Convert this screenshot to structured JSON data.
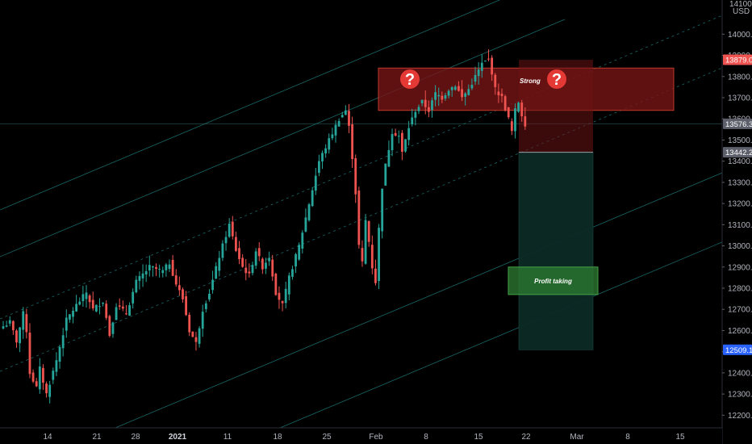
{
  "currency": "USD",
  "top_price_label": "14100.0",
  "colors": {
    "up": "#26a69a",
    "down": "#ef5350",
    "channel": "#1f7a7a",
    "red_zone": "#7a1416",
    "profit_zone": "#0c2a25",
    "profit_box": "#2e7d32",
    "last_price_tag": "#ef5350",
    "neutral_tag": "#5d606b",
    "blue_tag": "#2962ff"
  },
  "annotations": {
    "resistance_zone": {
      "low": 13640,
      "high": 13840,
      "label": "Strong"
    },
    "question_marks": [
      "?",
      "?"
    ],
    "short_position": {
      "entry": 13442.2,
      "stop": 13879.0,
      "target": 12509.1
    },
    "profit_box": {
      "low": 12770,
      "high": 12900,
      "label": "Profit taking"
    }
  },
  "price_tags": [
    {
      "price": 13879.0,
      "text": "13879.0",
      "color": "#ef5350"
    },
    {
      "price": 13576.3,
      "text": "13576.3",
      "color": "#5d606b"
    },
    {
      "price": 13442.2,
      "text": "13442.2",
      "color": "#5d606b"
    },
    {
      "price": 12509.1,
      "text": "12509.1",
      "color": "#2962ff"
    }
  ],
  "chart_data": {
    "type": "candlestick",
    "title": "",
    "xlabel": "",
    "ylabel": "",
    "ylim": [
      12125,
      14150
    ],
    "y_ticks": [
      12200,
      12300,
      12400,
      12500,
      12600,
      12700,
      12800,
      12900,
      13000,
      13100,
      13200,
      13300,
      13400,
      13500,
      13600,
      13700,
      13800,
      13900,
      14000
    ],
    "y_tick_labels": [
      "12200.0",
      "12300.0",
      "12400.0",
      "12500.0",
      "12600.0",
      "12700.0",
      "12800.0",
      "12900.0",
      "13000.0",
      "13100.0",
      "13200.0",
      "13300.0",
      "13400.0",
      "13500.0",
      "13600.0",
      "13700.0",
      "13800.0",
      "13900.0",
      "14000.0"
    ],
    "x_ticks": [
      "14",
      "21",
      "28",
      "2021",
      "11",
      "18",
      "25",
      "Feb",
      "8",
      "15",
      "22",
      "Mar",
      "8",
      "15"
    ],
    "x_tick_emphasis": [
      false,
      false,
      false,
      true,
      false,
      false,
      false,
      false,
      false,
      false,
      false,
      false,
      false,
      false
    ],
    "close_points": [
      [
        0,
        12620
      ],
      [
        2,
        12640
      ],
      [
        4,
        12550
      ],
      [
        6,
        12680
      ],
      [
        7,
        12600
      ],
      [
        8,
        12400
      ],
      [
        10,
        12330
      ],
      [
        11,
        12420
      ],
      [
        13,
        12300
      ],
      [
        16,
        12460
      ],
      [
        19,
        12650
      ],
      [
        22,
        12720
      ],
      [
        25,
        12780
      ],
      [
        27,
        12700
      ],
      [
        30,
        12740
      ],
      [
        32,
        12580
      ],
      [
        34,
        12720
      ],
      [
        37,
        12680
      ],
      [
        40,
        12830
      ],
      [
        44,
        12900
      ],
      [
        48,
        12880
      ],
      [
        50,
        12920
      ],
      [
        52,
        12820
      ],
      [
        54,
        12750
      ],
      [
        56,
        12600
      ],
      [
        58,
        12540
      ],
      [
        60,
        12700
      ],
      [
        62,
        12780
      ],
      [
        65,
        12950
      ],
      [
        68,
        13100
      ],
      [
        70,
        12980
      ],
      [
        72,
        12900
      ],
      [
        74,
        12860
      ],
      [
        76,
        12980
      ],
      [
        78,
        12900
      ],
      [
        80,
        12950
      ],
      [
        82,
        12780
      ],
      [
        84,
        12720
      ],
      [
        86,
        12850
      ],
      [
        89,
        13000
      ],
      [
        92,
        13200
      ],
      [
        95,
        13400
      ],
      [
        98,
        13500
      ],
      [
        101,
        13600
      ],
      [
        103,
        13640
      ],
      [
        104,
        13560
      ],
      [
        105,
        13420
      ],
      [
        106,
        13250
      ],
      [
        107,
        13000
      ],
      [
        108,
        12920
      ],
      [
        109,
        13120
      ],
      [
        110,
        13020
      ],
      [
        111,
        12900
      ],
      [
        112,
        12830
      ],
      [
        113,
        13080
      ],
      [
        114,
        13280
      ],
      [
        115,
        13380
      ],
      [
        117,
        13540
      ],
      [
        119,
        13520
      ],
      [
        120,
        13440
      ],
      [
        122,
        13560
      ],
      [
        124,
        13640
      ],
      [
        126,
        13680
      ],
      [
        128,
        13640
      ],
      [
        130,
        13720
      ],
      [
        132,
        13700
      ],
      [
        134,
        13740
      ],
      [
        136,
        13760
      ],
      [
        138,
        13700
      ],
      [
        140,
        13740
      ],
      [
        142,
        13800
      ],
      [
        144,
        13860
      ],
      [
        146,
        13880
      ],
      [
        147,
        13820
      ],
      [
        148,
        13740
      ],
      [
        150,
        13700
      ],
      [
        152,
        13600
      ],
      [
        153,
        13540
      ],
      [
        154,
        13640
      ],
      [
        155,
        13680
      ],
      [
        156,
        13620
      ],
      [
        157,
        13576
      ]
    ]
  }
}
